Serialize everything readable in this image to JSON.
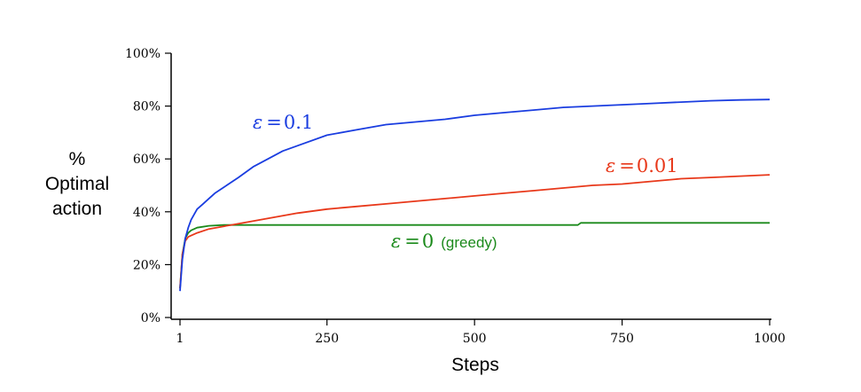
{
  "chart_data": {
    "type": "line",
    "title": "",
    "xlabel": "Steps",
    "ylabel_lines": [
      "%",
      "Optimal",
      "action"
    ],
    "xlim": [
      1,
      1000
    ],
    "ylim": [
      0,
      100
    ],
    "x_ticks": [
      1,
      250,
      500,
      750,
      1000
    ],
    "x_tick_labels": [
      "1",
      "250",
      "500",
      "750",
      "1000"
    ],
    "y_ticks": [
      0,
      20,
      40,
      60,
      80,
      100
    ],
    "y_tick_labels": [
      "0%",
      "20%",
      "40%",
      "60%",
      "80%",
      "100%"
    ],
    "grid": false,
    "legend": "none",
    "series": [
      {
        "name": "ε = 0.1",
        "color": "#1a3de0",
        "label_parts": {
          "symbol": "ε",
          "equals": "=",
          "value": "0.1"
        },
        "x": [
          1,
          5,
          10,
          15,
          20,
          30,
          40,
          50,
          60,
          80,
          100,
          125,
          150,
          175,
          200,
          250,
          300,
          350,
          400,
          450,
          500,
          550,
          600,
          650,
          700,
          750,
          800,
          850,
          900,
          950,
          1000
        ],
        "y": [
          10,
          22,
          30,
          34,
          37,
          41,
          43,
          45,
          47,
          50,
          53,
          57,
          60,
          63,
          65,
          69,
          71,
          73,
          74,
          75,
          76.5,
          77.5,
          78.5,
          79.5,
          80,
          80.5,
          81,
          81.5,
          82,
          82.3,
          82.5
        ]
      },
      {
        "name": "ε = 0.01",
        "color": "#e8381a",
        "label_parts": {
          "symbol": "ε",
          "equals": "=",
          "value": "0.01"
        },
        "x": [
          1,
          5,
          10,
          15,
          20,
          30,
          50,
          75,
          100,
          150,
          200,
          250,
          300,
          350,
          400,
          450,
          500,
          550,
          600,
          650,
          700,
          750,
          800,
          850,
          900,
          950,
          1000
        ],
        "y": [
          11,
          24,
          29,
          30.5,
          31,
          32,
          33.5,
          34.5,
          35.5,
          37.5,
          39.5,
          41,
          42,
          43,
          44,
          45,
          46,
          47,
          48,
          49,
          50,
          50.5,
          51.5,
          52.5,
          53,
          53.5,
          54
        ]
      },
      {
        "name": "ε = 0 (greedy)",
        "color": "#1b8a1b",
        "label_parts": {
          "symbol": "ε",
          "equals": "=",
          "value": "0",
          "suffix": "(greedy)"
        },
        "x": [
          1,
          5,
          10,
          15,
          20,
          30,
          50,
          75,
          100,
          150,
          200,
          300,
          400,
          500,
          600,
          675,
          680,
          750,
          850,
          1000
        ],
        "y": [
          11,
          24,
          30,
          32,
          33,
          34,
          34.7,
          35,
          35,
          35,
          35,
          35,
          35,
          35,
          35,
          35,
          35.8,
          35.8,
          35.8,
          35.8
        ]
      }
    ]
  }
}
